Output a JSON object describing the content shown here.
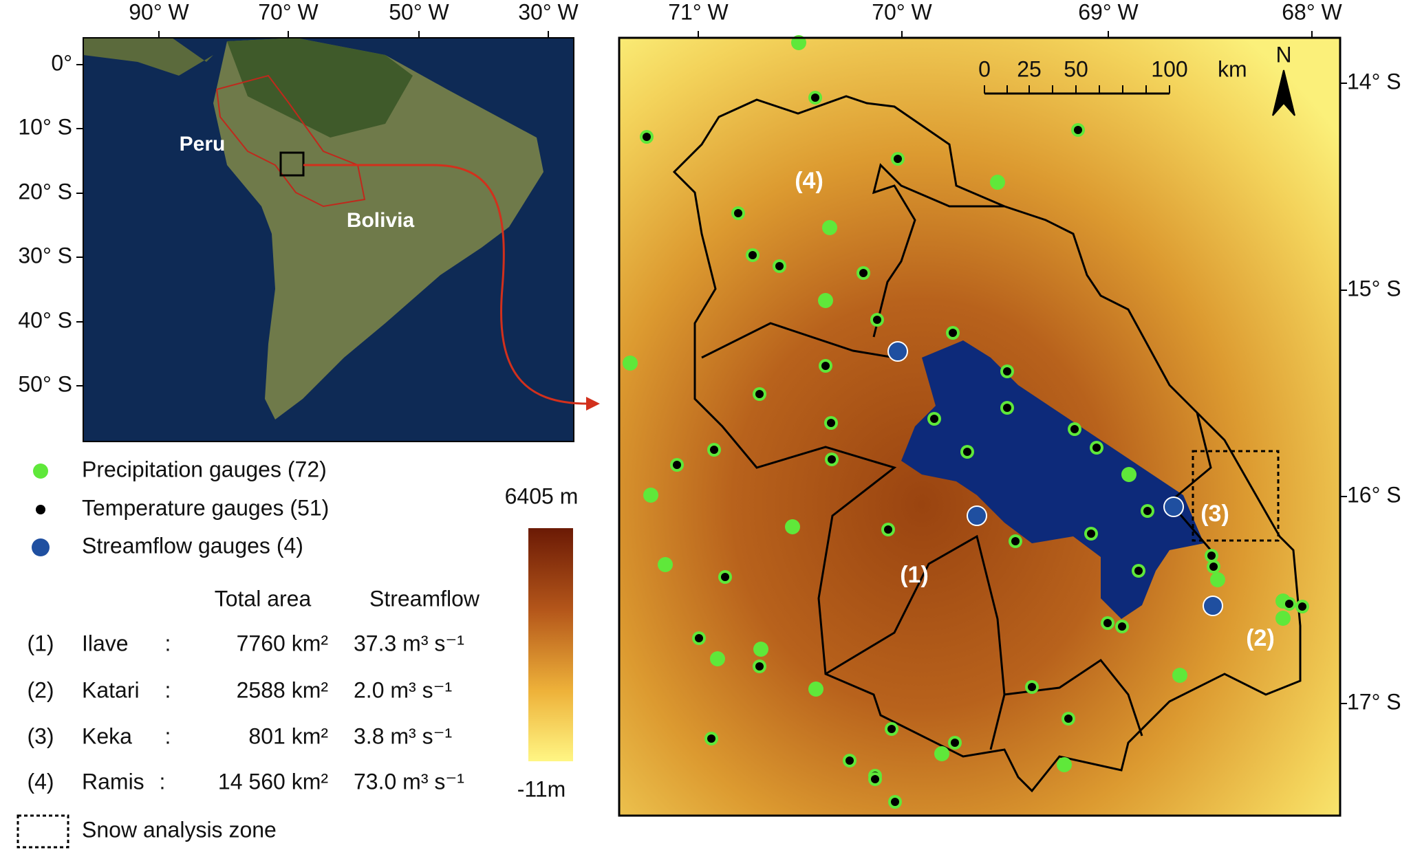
{
  "left_map": {
    "x_labels": [
      "90° W",
      "70° W",
      "50° W",
      "30° W"
    ],
    "y_labels": [
      "0°",
      "10° S",
      "20° S",
      "30° S",
      "40° S",
      "50° S"
    ],
    "places": [
      "Peru",
      "Bolivia"
    ]
  },
  "legend": {
    "items": [
      "Precipitation gauges (72)",
      "Temperature gauges (51)",
      "Streamflow gauges (4)"
    ],
    "snow_zone": "Snow analysis zone"
  },
  "table": {
    "header": [
      "Total area",
      "Streamflow"
    ],
    "rows": [
      [
        "(1)",
        "Ilave",
        ":",
        "7760 km²",
        "37.3 m³ s⁻¹"
      ],
      [
        "(2)",
        "Katari",
        ":",
        "2588 km²",
        "2.0 m³ s⁻¹"
      ],
      [
        "(3)",
        "Keka",
        ":",
        "801 km²",
        "3.8 m³ s⁻¹"
      ],
      [
        "(4)",
        "Ramis",
        ":",
        "14 560 km²",
        "73.0 m³ s⁻¹"
      ]
    ]
  },
  "colorbar": {
    "max": "6405 m",
    "min": "-11m"
  },
  "right_map": {
    "x_labels": [
      "71° W",
      "70° W",
      "69° W",
      "68° W"
    ],
    "y_labels": [
      "14° S",
      "15° S",
      "16° S",
      "17° S"
    ],
    "basins": [
      "(1)",
      "(2)",
      "(3)",
      "(4)"
    ],
    "scale_bar": [
      "0",
      "25",
      "50",
      "100",
      "km"
    ],
    "north": "N"
  }
}
